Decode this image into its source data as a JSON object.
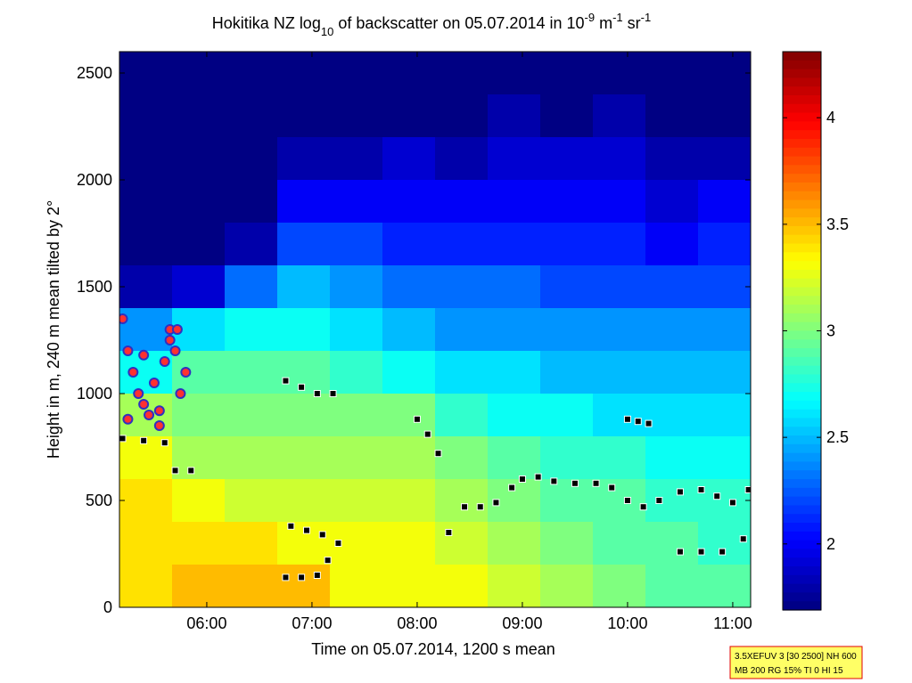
{
  "chart_data": {
    "type": "heatmap",
    "title": [
      "Hokitika NZ log",
      "10",
      " of backscatter on 05.07.2014 in 10",
      "-9",
      " m",
      "-1",
      " sr",
      "-1"
    ],
    "x_label": "Time on 05.07.2014, 1200 s mean",
    "y_label": "Height in m, 240 m mean tilted by 2°",
    "xlim": [
      5.17,
      11.17
    ],
    "xticks": [
      {
        "value": 6,
        "label": "06:00"
      },
      {
        "value": 7,
        "label": "07:00"
      },
      {
        "value": 8,
        "label": "08:00"
      },
      {
        "value": 9,
        "label": "09:00"
      },
      {
        "value": 10,
        "label": "10:00"
      },
      {
        "value": 11,
        "label": "11:00"
      }
    ],
    "ylim": [
      0,
      2600
    ],
    "yticks": [
      0,
      500,
      1000,
      1500,
      2000,
      2500
    ],
    "colormap": "jet",
    "clim": [
      1.69,
      4.31
    ],
    "cticks": [
      2,
      2.5,
      3,
      3.5,
      4
    ],
    "x": [
      5.42,
      5.92,
      6.42,
      6.92,
      7.42,
      7.92,
      8.42,
      8.92,
      9.42,
      9.92,
      10.42,
      10.92
    ],
    "y": [
      100,
      300,
      500,
      700,
      900,
      1100,
      1300,
      1500,
      1700,
      1900,
      2100,
      2300,
      2500
    ],
    "z": [
      [
        3.4,
        3.5,
        3.5,
        3.5,
        3.3,
        3.3,
        3.3,
        3.2,
        3.1,
        3.0,
        2.9,
        2.9
      ],
      [
        3.4,
        3.4,
        3.4,
        3.3,
        3.3,
        3.3,
        3.2,
        3.1,
        3.0,
        2.9,
        2.9,
        2.8
      ],
      [
        3.4,
        3.3,
        3.2,
        3.2,
        3.2,
        3.2,
        3.1,
        3.0,
        2.9,
        2.9,
        2.8,
        2.8
      ],
      [
        3.3,
        3.1,
        3.1,
        3.1,
        3.1,
        3.1,
        3.0,
        2.9,
        2.8,
        2.8,
        2.7,
        2.7
      ],
      [
        3.1,
        3.0,
        3.0,
        3.0,
        3.0,
        3.0,
        2.8,
        2.7,
        2.7,
        2.6,
        2.6,
        2.6
      ],
      [
        2.7,
        2.9,
        2.9,
        2.9,
        2.8,
        2.7,
        2.6,
        2.6,
        2.5,
        2.5,
        2.5,
        2.5
      ],
      [
        2.4,
        2.6,
        2.7,
        2.7,
        2.6,
        2.5,
        2.4,
        2.4,
        2.4,
        2.4,
        2.4,
        2.4
      ],
      [
        1.8,
        1.9,
        2.3,
        2.5,
        2.4,
        2.3,
        2.3,
        2.3,
        2.2,
        2.2,
        2.2,
        2.2
      ],
      [
        1.7,
        1.7,
        1.8,
        2.2,
        2.2,
        2.1,
        2.1,
        2.1,
        2.1,
        2.1,
        2.0,
        2.1
      ],
      [
        1.7,
        1.7,
        1.7,
        2.0,
        2.0,
        2.0,
        2.0,
        2.0,
        2.0,
        2.0,
        1.9,
        2.0
      ],
      [
        1.7,
        1.7,
        1.7,
        1.8,
        1.8,
        1.9,
        1.8,
        1.9,
        1.9,
        1.9,
        1.8,
        1.8
      ],
      [
        1.7,
        1.7,
        1.7,
        1.7,
        1.7,
        1.7,
        1.7,
        1.8,
        1.7,
        1.8,
        1.7,
        1.7
      ],
      [
        1.7,
        1.7,
        1.7,
        1.7,
        1.7,
        1.7,
        1.7,
        1.7,
        1.7,
        1.7,
        1.7,
        1.7
      ]
    ],
    "squares": {
      "color": "#000000",
      "x": [
        5.2,
        5.4,
        5.6,
        5.7,
        5.85,
        6.75,
        6.9,
        7.05,
        7.2,
        6.75,
        6.9,
        7.05,
        7.15,
        7.25,
        6.8,
        6.95,
        7.1,
        8.0,
        8.1,
        8.2,
        8.3,
        8.45,
        8.6,
        8.75,
        8.9,
        9.0,
        9.15,
        9.3,
        9.5,
        9.7,
        9.85,
        10.0,
        10.15,
        10.3,
        10.5,
        10.7,
        10.85,
        11.0,
        11.15,
        10.0,
        10.1,
        10.2,
        10.5,
        10.7,
        10.9,
        11.1
      ],
      "y": [
        790,
        780,
        770,
        640,
        640,
        1060,
        1030,
        1000,
        1000,
        140,
        140,
        150,
        220,
        300,
        380,
        360,
        340,
        880,
        810,
        720,
        350,
        470,
        470,
        490,
        560,
        600,
        610,
        590,
        580,
        580,
        560,
        500,
        470,
        500,
        540,
        550,
        520,
        490,
        550,
        880,
        870,
        860,
        260,
        260,
        260,
        320
      ]
    },
    "circles": {
      "color": "#ff3030",
      "x": [
        5.2,
        5.25,
        5.3,
        5.35,
        5.4,
        5.45,
        5.5,
        5.55,
        5.6,
        5.65,
        5.7,
        5.75,
        5.8,
        5.25,
        5.4,
        5.55,
        5.65,
        5.72
      ],
      "y": [
        1350,
        1200,
        1100,
        1000,
        950,
        900,
        1050,
        850,
        1150,
        1300,
        1200,
        1000,
        1100,
        880,
        1180,
        920,
        1250,
        1300
      ]
    },
    "note": [
      "3.5XEFUV 3 [30 2500] NH 600",
      "MB 200 RG 15% TI 0 HI 15"
    ]
  }
}
